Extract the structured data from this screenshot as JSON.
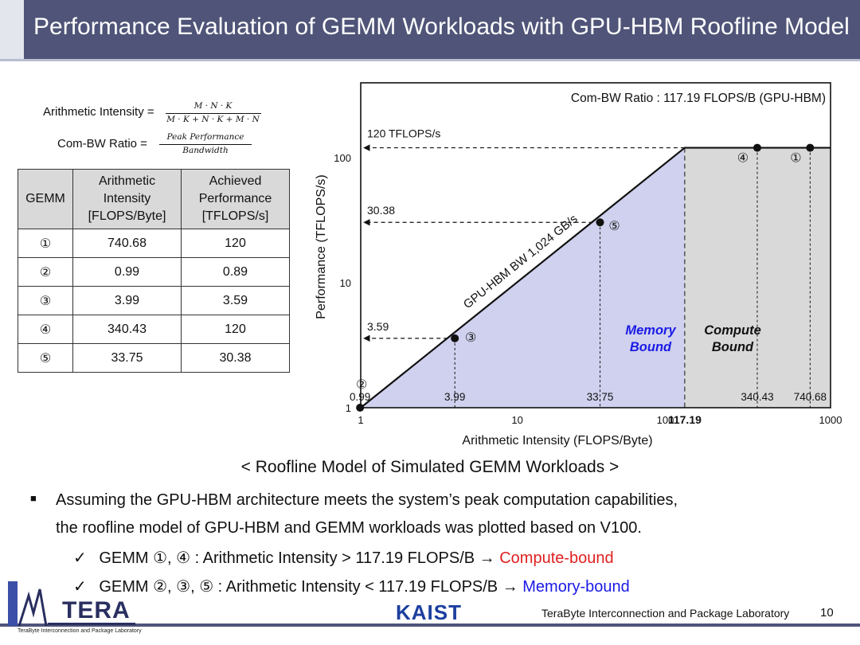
{
  "title": "Performance Evaluation of GEMM Workloads with GPU-HBM Roofline Model",
  "formulas": {
    "ai_label": "Arithmetic Intensity =",
    "ai_numerator": "M · N · K",
    "ai_denominator": "M · K + N · K + M · N",
    "cbr_label": "Com-BW Ratio =",
    "cbr_numerator": "Peak Performance",
    "cbr_denominator": "Bandwidth"
  },
  "table": {
    "headers": [
      "GEMM",
      "Arithmetic Intensity [FLOPS/Byte]",
      "Achieved Performance [TFLOPS/s]"
    ],
    "rows": [
      [
        "①",
        "740.68",
        "120"
      ],
      [
        "②",
        "0.99",
        "0.89"
      ],
      [
        "③",
        "3.99",
        "3.59"
      ],
      [
        "④",
        "340.43",
        "120"
      ],
      [
        "⑤",
        "33.75",
        "30.38"
      ]
    ]
  },
  "chart_data": {
    "type": "line",
    "xscale": "log",
    "yscale": "log",
    "xlim": [
      1,
      1000
    ],
    "ylim": [
      1,
      120
    ],
    "xlabel": "Arithmetic Intensity (FLOPS/Byte)",
    "ylabel": "Performance (TFLOPS/s)",
    "x_ticks": [
      "1",
      "10",
      "100",
      "1000"
    ],
    "x_tick_values": [
      1,
      10,
      100,
      1000
    ],
    "y_ticks": [
      "1",
      "10",
      "100"
    ],
    "y_tick_values": [
      1,
      10,
      100
    ],
    "ridge_label": "117.19",
    "ridge_value": 117.19,
    "roof_line": {
      "x": [
        1,
        117.19,
        1000
      ],
      "y": [
        1,
        120,
        120
      ]
    },
    "roof_label": "120 TFLOPS/s",
    "roof_value": 120,
    "slope_label": "GPU-HBM BW 1,024 GB/s",
    "ratio_label": "Com-BW Ratio : 117.19 FLOPS/B (GPU-HBM)",
    "region_memory": "Memory Bound",
    "region_memory_lines": [
      "Memory",
      "Bound"
    ],
    "region_compute": "Compute Bound",
    "region_compute_lines": [
      "Compute",
      "Bound"
    ],
    "points": [
      {
        "id": "①",
        "x": 740.68,
        "y": 120,
        "x_label": "740.68"
      },
      {
        "id": "②",
        "x": 0.99,
        "y": 0.89,
        "x_label": "0.99"
      },
      {
        "id": "③",
        "x": 3.99,
        "y": 3.59,
        "x_label": "3.99",
        "y_label": "3.59"
      },
      {
        "id": "④",
        "x": 340.43,
        "y": 120,
        "x_label": "340.43"
      },
      {
        "id": "⑤",
        "x": 33.75,
        "y": 30.38,
        "x_label": "33.75",
        "y_label": "30.38"
      }
    ],
    "colors": {
      "memory_fill": "#cfd1ee",
      "compute_fill": "#d9d9d9",
      "memory_text": "#1a1ae6"
    }
  },
  "caption": "< Roofline Model of Simulated GEMM Workloads >",
  "bullet": {
    "line1": "Assuming the GPU-HBM architecture meets the system’s peak computation capabilities,",
    "line2": "the roofline model of GPU-HBM and GEMM workloads was plotted based on V100.",
    "check1_text": "GEMM ①, ④ : Arithmetic Intensity > 117.19 FLOPS/B →",
    "check1_result": "Compute-bound",
    "check2_text": "GEMM ②, ③, ⑤ : Arithmetic Intensity < 117.19 FLOPS/B →",
    "check2_result": "Memory-bound"
  },
  "footer": {
    "logo": "TERA",
    "logo_sub": "TeraByte Interconnection and Package Laboratory",
    "kaist": "KAIST",
    "lab": "TeraByte Interconnection and Package Laboratory",
    "page": "10"
  }
}
